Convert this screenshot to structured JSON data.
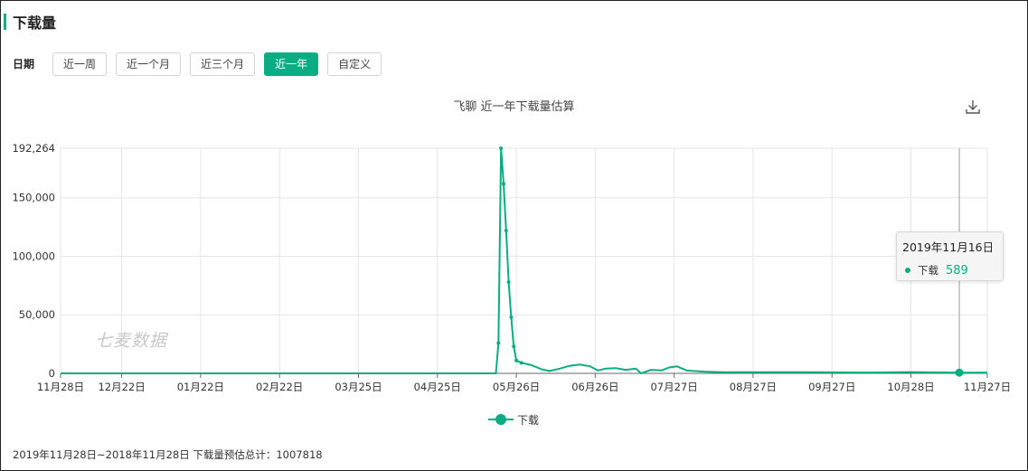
{
  "header": {
    "title": "下载量"
  },
  "date_filter": {
    "label": "日期",
    "options": [
      "近一周",
      "近一个月",
      "近三个月",
      "近一年",
      "自定义"
    ],
    "selected": "近一年"
  },
  "colors": {
    "accent": "#0aad83",
    "series": "#0aad83",
    "grid": "#e6e6e6"
  },
  "toolbar": {
    "download_icon": "download-icon"
  },
  "watermark": "七麦数据",
  "tooltip": {
    "date": "2019年11月16日",
    "series_name": "下载",
    "value": "589"
  },
  "footer": {
    "text": "2019年11月28日~2018年11月28日 下载量预估总计：1007818"
  },
  "chart_data": {
    "type": "line",
    "title": "飞聊 近一年下载量估算",
    "xlabel": "",
    "ylabel": "",
    "x_range": [
      "2018-11-28",
      "2019-11-27"
    ],
    "x_ticks": [
      "11月28日",
      "12月22日",
      "01月22日",
      "02月22日",
      "03月25日",
      "04月25日",
      "05月26日",
      "06月26日",
      "07月27日",
      "08月27日",
      "09月27日",
      "10月28日",
      "11月27日"
    ],
    "x_tick_dates": [
      "2018-11-28",
      "2018-12-22",
      "2019-01-22",
      "2019-02-22",
      "2019-03-25",
      "2019-04-25",
      "2019-05-26",
      "2019-06-26",
      "2019-07-27",
      "2019-08-27",
      "2019-09-27",
      "2019-10-28",
      "2019-11-27"
    ],
    "y_ticks": [
      0,
      50000,
      100000,
      150000,
      192264
    ],
    "y_tick_labels": [
      "0",
      "50,000",
      "100,000",
      "150,000",
      "192,264"
    ],
    "ylim": [
      0,
      192264
    ],
    "grid": true,
    "legend": "bottom-center",
    "series": [
      {
        "name": "下载",
        "points": [
          [
            "2018-11-28",
            0
          ],
          [
            "2019-05-18",
            0
          ],
          [
            "2019-05-19",
            26000
          ],
          [
            "2019-05-20",
            192264
          ],
          [
            "2019-05-21",
            162000
          ],
          [
            "2019-05-22",
            122000
          ],
          [
            "2019-05-23",
            78000
          ],
          [
            "2019-05-24",
            48000
          ],
          [
            "2019-05-25",
            23000
          ],
          [
            "2019-05-26",
            11000
          ],
          [
            "2019-05-28",
            9000
          ],
          [
            "2019-06-01",
            7000
          ],
          [
            "2019-06-05",
            3500
          ],
          [
            "2019-06-08",
            2000
          ],
          [
            "2019-06-12",
            4000
          ],
          [
            "2019-06-16",
            6500
          ],
          [
            "2019-06-20",
            7500
          ],
          [
            "2019-06-24",
            6000
          ],
          [
            "2019-06-27",
            2500
          ],
          [
            "2019-06-30",
            4000
          ],
          [
            "2019-07-04",
            4500
          ],
          [
            "2019-07-08",
            3000
          ],
          [
            "2019-07-12",
            4000
          ],
          [
            "2019-07-14",
            0
          ],
          [
            "2019-07-18",
            3000
          ],
          [
            "2019-07-22",
            2500
          ],
          [
            "2019-07-25",
            5000
          ],
          [
            "2019-07-28",
            6000
          ],
          [
            "2019-08-01",
            2500
          ],
          [
            "2019-08-08",
            1500
          ],
          [
            "2019-08-15",
            1000
          ],
          [
            "2019-09-01",
            900
          ],
          [
            "2019-09-20",
            900
          ],
          [
            "2019-10-10",
            700
          ],
          [
            "2019-10-28",
            1100
          ],
          [
            "2019-11-10",
            800
          ],
          [
            "2019-11-16",
            589
          ],
          [
            "2019-11-27",
            700
          ]
        ]
      }
    ]
  }
}
